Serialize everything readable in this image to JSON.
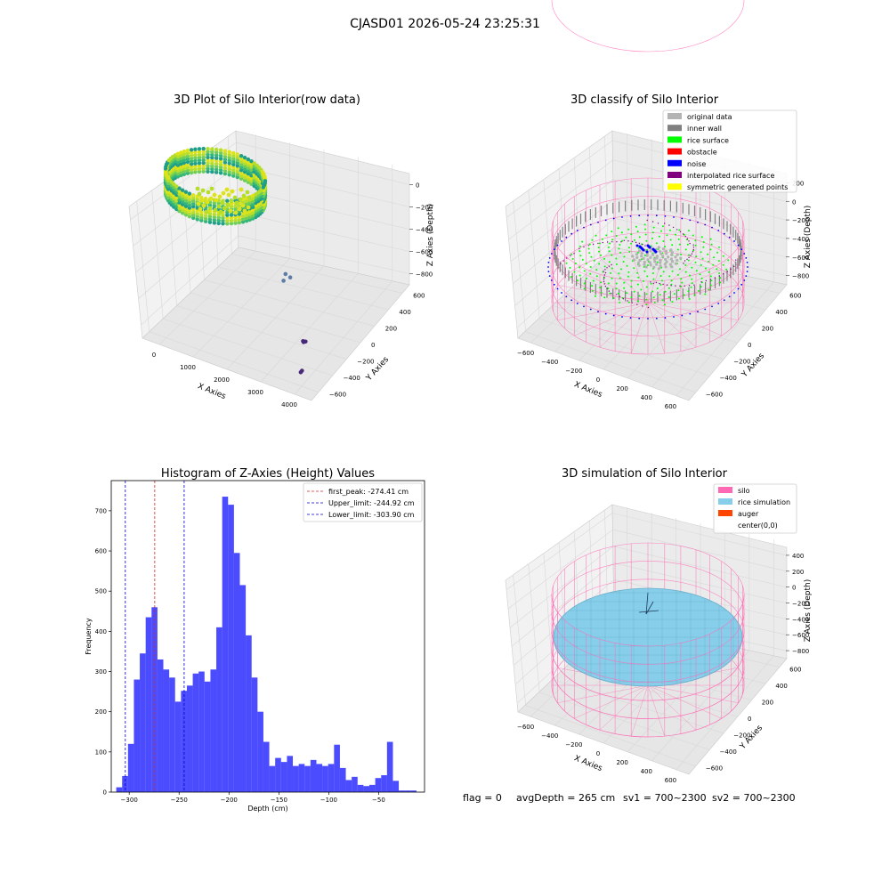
{
  "figure": {
    "suptitle": "CJASD01 2026-05-24 23:25:31",
    "footer": {
      "flag": "flag = 0",
      "avg_depth": "avgDepth = 265 cm",
      "sv1": "sv1 = 700~2300",
      "sv2": "sv2 = 700~2300"
    }
  },
  "colors": {
    "hist_bar": "#0000ff",
    "peak_line": "#d62728",
    "limit_line": "#0000cd",
    "original_data": "#b3b3b3",
    "inner_wall": "#808080",
    "rice_surface": "#00ff00",
    "obstacle": "#ff0000",
    "noise": "#0000ff",
    "interpolated_rice_surface": "#800080",
    "symmetric_generated_points": "#ffff00",
    "silo": "#ff69b4",
    "rice_simulation": "#87ceeb",
    "auger": "#ff4500"
  },
  "chart_data": [
    {
      "type": "scatter",
      "projection": "3d",
      "title": "3D Plot of Silo Interior(row data)",
      "xlabel": "X Axies",
      "ylabel": "Y Axies",
      "zlabel": "Z Axies (Depth)",
      "x_ticks": [
        "0",
        "1000",
        "2000",
        "3000",
        "4000"
      ],
      "y_ticks": [
        "600",
        "400",
        "200",
        "0",
        "−200",
        "−400",
        "−600"
      ],
      "z_ticks": [
        "0",
        "−200",
        "−400",
        "−600",
        "−800"
      ],
      "xlim": [
        -600,
        4600
      ],
      "ylim": [
        -650,
        650
      ],
      "zlim": [
        -950,
        50
      ],
      "colormap": "viridis",
      "outliers": [
        {
          "x": 1700,
          "y": 300,
          "z": -650
        },
        {
          "x": 1750,
          "y": 250,
          "z": -680
        },
        {
          "x": 1780,
          "y": 330,
          "z": -700
        },
        {
          "x": 3200,
          "y": -100,
          "z": -900
        },
        {
          "x": 3250,
          "y": -150,
          "z": -860
        },
        {
          "x": 3300,
          "y": -180,
          "z": -820
        },
        {
          "x": 3800,
          "y": -420,
          "z": -900
        },
        {
          "x": 3850,
          "y": -460,
          "z": -880
        }
      ]
    },
    {
      "type": "scatter",
      "projection": "3d",
      "title": "3D classify of Silo Interior",
      "xlabel": "X Axies",
      "ylabel": "Y Axies",
      "zlabel": "Z Axies (Depth)",
      "x_ticks": [
        "−600",
        "−400",
        "−200",
        "0",
        "200",
        "400",
        "600"
      ],
      "y_ticks": [
        "600",
        "400",
        "200",
        "0",
        "−200",
        "−400",
        "−600"
      ],
      "z_ticks": [
        "200",
        "0",
        "−200",
        "−400",
        "−600",
        "−800"
      ],
      "xlim": [
        -700,
        700
      ],
      "ylim": [
        -700,
        700
      ],
      "zlim": [
        -900,
        300
      ],
      "legend_location": "upper right",
      "legend": [
        {
          "label": "original data",
          "color_key": "original_data"
        },
        {
          "label": "inner wall",
          "color_key": "inner_wall"
        },
        {
          "label": "rice surface",
          "color_key": "rice_surface"
        },
        {
          "label": "obstacle",
          "color_key": "obstacle"
        },
        {
          "label": "noise",
          "color_key": "noise"
        },
        {
          "label": "interpolated rice surface",
          "color_key": "interpolated_rice_surface"
        },
        {
          "label": "symmetric generated points",
          "color_key": "symmetric_generated_points"
        }
      ]
    },
    {
      "type": "bar",
      "title": "Histogram of Z-Axies (Height) Values",
      "xlabel": "Depth (cm)",
      "ylabel": "Frequency",
      "xlim": [
        -318,
        -4
      ],
      "ylim": [
        0,
        775
      ],
      "x_ticks": [
        -300,
        -250,
        -200,
        -150,
        -100,
        -50
      ],
      "y_ticks": [
        0,
        100,
        200,
        300,
        400,
        500,
        600,
        700
      ],
      "bin_start": -313,
      "bin_width": 5.9,
      "values": [
        12,
        40,
        120,
        280,
        345,
        435,
        460,
        330,
        305,
        285,
        225,
        252,
        265,
        295,
        300,
        275,
        305,
        410,
        735,
        715,
        595,
        515,
        390,
        285,
        200,
        125,
        65,
        85,
        75,
        90,
        65,
        70,
        65,
        80,
        70,
        65,
        70,
        118,
        60,
        30,
        38,
        18,
        15,
        18,
        35,
        42,
        125,
        28,
        4,
        4,
        4
      ],
      "vlines": [
        {
          "x": -274.41,
          "label": "first_peak: -274.41 cm",
          "color_key": "peak_line"
        },
        {
          "x": -244.92,
          "label": "Upper_limit: -244.92 cm",
          "color_key": "limit_line"
        },
        {
          "x": -303.9,
          "label": "Lower_limit: -303.90 cm",
          "color_key": "limit_line"
        }
      ],
      "legend_location": "upper right"
    },
    {
      "type": "scatter",
      "projection": "3d",
      "title": "3D simulation of Silo Interior",
      "xlabel": "X Axies",
      "ylabel": "Y Axies",
      "zlabel": "Z Axies (Depth)",
      "x_ticks": [
        "−600",
        "−400",
        "−200",
        "0",
        "200",
        "400",
        "600"
      ],
      "y_ticks": [
        "600",
        "400",
        "200",
        "0",
        "−200",
        "−400",
        "−600"
      ],
      "z_ticks": [
        "400",
        "200",
        "0",
        "−200",
        "−400",
        "−600",
        "−800"
      ],
      "xlim": [
        -700,
        700
      ],
      "ylim": [
        -700,
        700
      ],
      "zlim": [
        -900,
        450
      ],
      "legend_location": "upper right",
      "legend": [
        {
          "label": "silo",
          "color_key": "silo"
        },
        {
          "label": "rice simulation",
          "color_key": "rice_simulation"
        },
        {
          "label": "auger",
          "color_key": "auger"
        },
        {
          "label": "center(0,0)",
          "color_key": ""
        }
      ]
    }
  ]
}
